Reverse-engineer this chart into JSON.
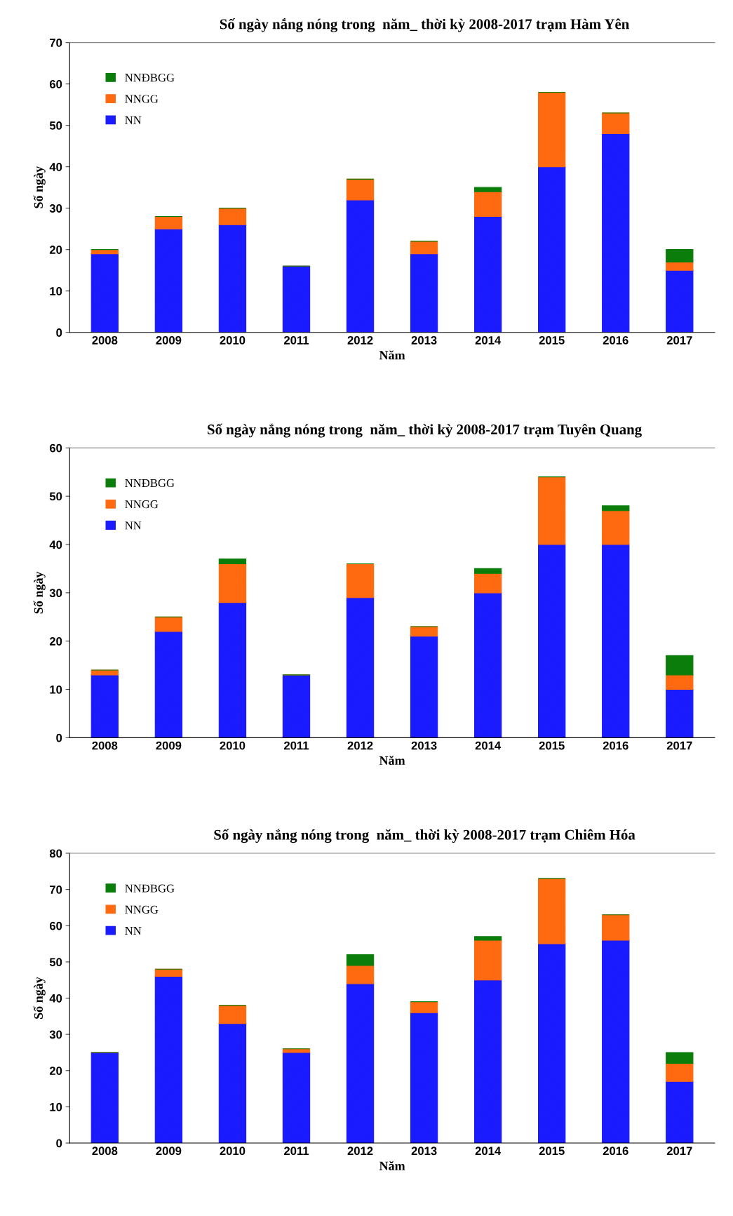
{
  "chart_data": [
    {
      "type": "bar",
      "stacked": true,
      "title": "Số ngày nắng nóng trong  năm_ thời kỳ 2008-2017 trạm Hàm Yên",
      "xlabel": "Năm",
      "ylabel": "Số ngày",
      "categories": [
        "2008",
        "2009",
        "2010",
        "2011",
        "2012",
        "2013",
        "2014",
        "2015",
        "2016",
        "2017"
      ],
      "ylim": [
        0,
        70
      ],
      "yticks": [
        0,
        10,
        20,
        30,
        40,
        50,
        60,
        70
      ],
      "legend": "top left",
      "grid": false,
      "series": [
        {
          "name": "NN",
          "color": "#1a1aff",
          "values": [
            19,
            25,
            26,
            16,
            32,
            19,
            28,
            40,
            48,
            15
          ]
        },
        {
          "name": "NNGG",
          "color": "#ff6a10",
          "values": [
            1,
            3,
            4,
            0,
            5,
            3,
            6,
            18,
            5,
            2
          ]
        },
        {
          "name": "NNĐBGG",
          "color": "#0a7d0a",
          "values": [
            0,
            0,
            0,
            0,
            0,
            0,
            1,
            0,
            0,
            3
          ]
        }
      ]
    },
    {
      "type": "bar",
      "stacked": true,
      "title": "Số ngày nắng nóng trong  năm_ thời kỳ 2008-2017 trạm Tuyên Quang",
      "xlabel": "Năm",
      "ylabel": "Số ngày",
      "categories": [
        "2008",
        "2009",
        "2010",
        "2011",
        "2012",
        "2013",
        "2014",
        "2015",
        "2016",
        "2017"
      ],
      "ylim": [
        0,
        60
      ],
      "yticks": [
        0,
        10,
        20,
        30,
        40,
        50,
        60
      ],
      "legend": "top left",
      "grid": false,
      "series": [
        {
          "name": "NN",
          "color": "#1a1aff",
          "values": [
            13,
            22,
            28,
            13,
            29,
            21,
            30,
            40,
            40,
            10
          ]
        },
        {
          "name": "NNGG",
          "color": "#ff6a10",
          "values": [
            1,
            3,
            8,
            0,
            7,
            2,
            4,
            14,
            7,
            3
          ]
        },
        {
          "name": "NNĐBGG",
          "color": "#0a7d0a",
          "values": [
            0,
            0,
            1,
            0,
            0,
            0,
            1,
            0,
            1,
            4
          ]
        }
      ]
    },
    {
      "type": "bar",
      "stacked": true,
      "title": "Số ngày nắng nóng trong  năm_ thời kỳ 2008-2017 trạm Chiêm Hóa",
      "xlabel": "Năm",
      "ylabel": "Số ngày",
      "categories": [
        "2008",
        "2009",
        "2010",
        "2011",
        "2012",
        "2013",
        "2014",
        "2015",
        "2016",
        "2017"
      ],
      "ylim": [
        0,
        80
      ],
      "yticks": [
        0,
        10,
        20,
        30,
        40,
        50,
        60,
        70,
        80
      ],
      "legend": "top left",
      "grid": false,
      "series": [
        {
          "name": "NN",
          "color": "#1a1aff",
          "values": [
            25,
            46,
            33,
            25,
            44,
            36,
            45,
            55,
            56,
            17
          ]
        },
        {
          "name": "NNGG",
          "color": "#ff6a10",
          "values": [
            0,
            2,
            5,
            1,
            5,
            3,
            11,
            18,
            7,
            5
          ]
        },
        {
          "name": "NNĐBGG",
          "color": "#0a7d0a",
          "values": [
            0,
            0,
            0,
            0,
            3,
            0,
            1,
            0,
            0,
            3
          ]
        }
      ]
    }
  ]
}
